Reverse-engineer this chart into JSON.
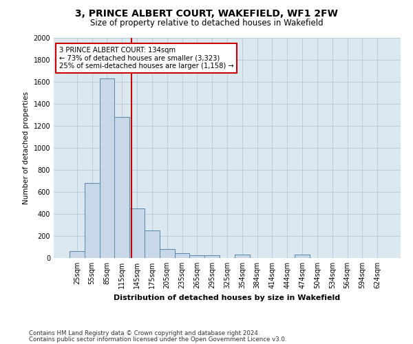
{
  "title": "3, PRINCE ALBERT COURT, WAKEFIELD, WF1 2FW",
  "subtitle": "Size of property relative to detached houses in Wakefield",
  "xlabel": "Distribution of detached houses by size in Wakefield",
  "ylabel": "Number of detached properties",
  "footnote1": "Contains HM Land Registry data © Crown copyright and database right 2024.",
  "footnote2": "Contains public sector information licensed under the Open Government Licence v3.0.",
  "bin_labels": [
    "25sqm",
    "55sqm",
    "85sqm",
    "115sqm",
    "145sqm",
    "175sqm",
    "205sqm",
    "235sqm",
    "265sqm",
    "295sqm",
    "325sqm",
    "354sqm",
    "384sqm",
    "414sqm",
    "444sqm",
    "474sqm",
    "504sqm",
    "534sqm",
    "564sqm",
    "594sqm",
    "624sqm"
  ],
  "bar_values": [
    60,
    680,
    1630,
    1280,
    450,
    250,
    80,
    45,
    25,
    25,
    0,
    30,
    0,
    0,
    0,
    30,
    0,
    0,
    0,
    0,
    0
  ],
  "bar_color": "#c8d8e8",
  "bar_edge_color": "#5588aa",
  "vline_color": "#cc0000",
  "annotation_text": "3 PRINCE ALBERT COURT: 134sqm\n← 73% of detached houses are smaller (3,323)\n25% of semi-detached houses are larger (1,158) →",
  "annotation_box_color": "#ffffff",
  "annotation_box_edge": "#cc0000",
  "ylim": [
    0,
    2000
  ],
  "yticks": [
    0,
    200,
    400,
    600,
    800,
    1000,
    1200,
    1400,
    1600,
    1800,
    2000
  ],
  "grid_color": "#bbccdd",
  "fig_bg_color": "#ffffff",
  "plot_bg_color": "#dce8f0"
}
